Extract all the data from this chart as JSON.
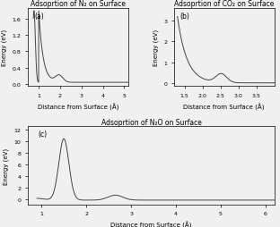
{
  "title_a": "Adsoprtion of N₂ on Surface",
  "title_b": "Adsoprtion of CO₂ on Surface",
  "title_c": "Adsoprtion of N₂O on Surface",
  "label_a": "(a)",
  "label_b": "(b)",
  "label_c": "(c)",
  "xlabel": "Distance from Surface (Å)",
  "ylabel": "Energy (eV)",
  "xlim_a": [
    0.5,
    5.2
  ],
  "xlim_b": [
    1.2,
    4.0
  ],
  "xlim_c": [
    0.7,
    6.2
  ],
  "ylim_a": [
    -0.05,
    1.85
  ],
  "ylim_b": [
    -0.15,
    3.6
  ],
  "ylim_c": [
    -0.8,
    12.5
  ],
  "xticks_a": [
    1,
    2,
    3,
    4,
    5
  ],
  "xticks_b": [
    1.5,
    2.0,
    2.5,
    3.0,
    3.5
  ],
  "xticks_c": [
    1,
    2,
    3,
    4,
    5,
    6
  ],
  "yticks_a": [
    0.0,
    0.4,
    0.8,
    1.2,
    1.6
  ],
  "yticks_b": [
    0.0,
    1.0,
    2.0,
    3.0
  ],
  "yticks_c": [
    0,
    2,
    4,
    6,
    8,
    10,
    12
  ],
  "line_color": "#444444",
  "bg_color": "#f0f0f0",
  "fontsize_title": 5.5,
  "fontsize_label": 5.0,
  "fontsize_tick": 4.5,
  "fontsize_panel": 5.5
}
